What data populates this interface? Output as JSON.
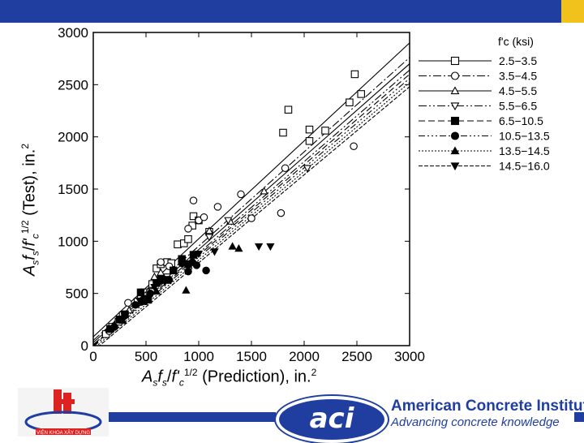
{
  "chart_data": {
    "type": "scatter",
    "xlabel": "",
    "ylabel": "",
    "xlim": [
      0,
      3000
    ],
    "ylim": [
      0,
      3000
    ],
    "xticks": [
      "0",
      "500",
      "1000",
      "1500",
      "2000",
      "2500",
      "3000"
    ],
    "yticks": [
      "0",
      "500",
      "1000",
      "1500",
      "2000",
      "2500",
      "3000"
    ],
    "legend_title": "f'c (ksi)",
    "legend_position": "right",
    "series": [
      {
        "name": "2.5−3.5",
        "marker": "square-open",
        "line": "solid",
        "fit": [
          [
            0,
            85
          ],
          [
            3000,
            2900
          ]
        ],
        "points": [
          [
            120,
            110
          ],
          [
            180,
            180
          ],
          [
            240,
            230
          ],
          [
            280,
            290
          ],
          [
            420,
            420
          ],
          [
            480,
            510
          ],
          [
            560,
            590
          ],
          [
            600,
            740
          ],
          [
            640,
            780
          ],
          [
            700,
            800
          ],
          [
            740,
            790
          ],
          [
            800,
            970
          ],
          [
            860,
            980
          ],
          [
            900,
            1020
          ],
          [
            940,
            1150
          ],
          [
            950,
            1240
          ],
          [
            1000,
            1200
          ],
          [
            1100,
            1090
          ],
          [
            1800,
            2040
          ],
          [
            1850,
            2260
          ],
          [
            2050,
            1960
          ],
          [
            2050,
            2070
          ],
          [
            2200,
            2060
          ],
          [
            2430,
            2330
          ],
          [
            2480,
            2600
          ],
          [
            2540,
            2410
          ]
        ]
      },
      {
        "name": "3.5−4.5",
        "marker": "circle-open",
        "line": "dash-dot",
        "fit": [
          [
            0,
            50
          ],
          [
            3000,
            2760
          ]
        ],
        "points": [
          [
            150,
            140
          ],
          [
            250,
            250
          ],
          [
            330,
            410
          ],
          [
            450,
            460
          ],
          [
            640,
            800
          ],
          [
            720,
            760
          ],
          [
            900,
            1120
          ],
          [
            950,
            1390
          ],
          [
            1000,
            1200
          ],
          [
            1050,
            1230
          ],
          [
            1180,
            1330
          ],
          [
            1400,
            1450
          ],
          [
            1500,
            1220
          ],
          [
            1780,
            1270
          ],
          [
            1820,
            1700
          ],
          [
            2470,
            1910
          ]
        ]
      },
      {
        "name": "4.5−5.5",
        "marker": "triangle-open",
        "line": "solid",
        "fit": [
          [
            0,
            30
          ],
          [
            3000,
            2700
          ]
        ],
        "points": [
          [
            200,
            190
          ],
          [
            340,
            340
          ],
          [
            520,
            520
          ],
          [
            580,
            660
          ],
          [
            640,
            700
          ],
          [
            1100,
            1100
          ],
          [
            1300,
            1190
          ],
          [
            1620,
            1480
          ]
        ]
      },
      {
        "name": "5.5−6.5",
        "marker": "triangle-down-open",
        "line": "dash-dot-dot",
        "fit": [
          [
            0,
            10
          ],
          [
            3000,
            2640
          ]
        ],
        "points": [
          [
            180,
            160
          ],
          [
            300,
            280
          ],
          [
            480,
            480
          ],
          [
            560,
            520
          ],
          [
            620,
            600
          ],
          [
            700,
            660
          ],
          [
            1100,
            1040
          ],
          [
            1280,
            1200
          ],
          [
            2030,
            1700
          ]
        ]
      },
      {
        "name": "6.5−10.5",
        "marker": "square-filled",
        "line": "dash",
        "fit": [
          [
            0,
            0
          ],
          [
            3000,
            2600
          ]
        ],
        "points": [
          [
            160,
            160
          ],
          [
            250,
            250
          ],
          [
            300,
            300
          ],
          [
            450,
            510
          ],
          [
            520,
            440
          ],
          [
            600,
            600
          ],
          [
            640,
            640
          ],
          [
            700,
            630
          ],
          [
            760,
            720
          ],
          [
            840,
            830
          ],
          [
            900,
            780
          ],
          [
            950,
            870
          ]
        ]
      },
      {
        "name": "10.5−13.5",
        "marker": "circle-filled",
        "line": "dash-dot-dot-dot",
        "fit": [
          [
            0,
            -10
          ],
          [
            3000,
            2560
          ]
        ],
        "points": [
          [
            200,
            180
          ],
          [
            260,
            250
          ],
          [
            400,
            390
          ],
          [
            480,
            450
          ],
          [
            540,
            500
          ],
          [
            640,
            620
          ],
          [
            720,
            630
          ],
          [
            840,
            790
          ],
          [
            900,
            710
          ],
          [
            940,
            800
          ],
          [
            980,
            770
          ],
          [
            1070,
            720
          ]
        ]
      },
      {
        "name": "13.5−14.5",
        "marker": "triangle-filled",
        "line": "dotted",
        "fit": [
          [
            0,
            -30
          ],
          [
            3000,
            2520
          ]
        ],
        "points": [
          [
            200,
            200
          ],
          [
            280,
            240
          ],
          [
            480,
            420
          ],
          [
            600,
            520
          ],
          [
            880,
            530
          ],
          [
            1320,
            950
          ],
          [
            1380,
            930
          ]
        ]
      },
      {
        "name": "14.5−16.0",
        "marker": "triangle-down-filled",
        "line": "dense-dash",
        "fit": [
          [
            0,
            -50
          ],
          [
            3000,
            2480
          ]
        ],
        "points": [
          [
            300,
            290
          ],
          [
            440,
            430
          ],
          [
            580,
            560
          ],
          [
            680,
            610
          ],
          [
            1000,
            880
          ],
          [
            1150,
            900
          ],
          [
            1570,
            950
          ],
          [
            1680,
            950
          ]
        ]
      }
    ]
  },
  "labels": {
    "y_axis": "AsfsIf'c1/2 (Test), in.2",
    "x_axis": "Asfs/f'c1/2 (Prediction), in.2"
  },
  "footer": {
    "org_name": "American Concrete Institute",
    "tagline": "Advancing concrete knowledge",
    "aci_logo_text": "aci",
    "left_logo_text": "VIỆN KHOA XÂY DỰNG"
  },
  "colors": {
    "brand_blue": "#1f3ea0",
    "accent_yellow": "#f1c21b"
  }
}
